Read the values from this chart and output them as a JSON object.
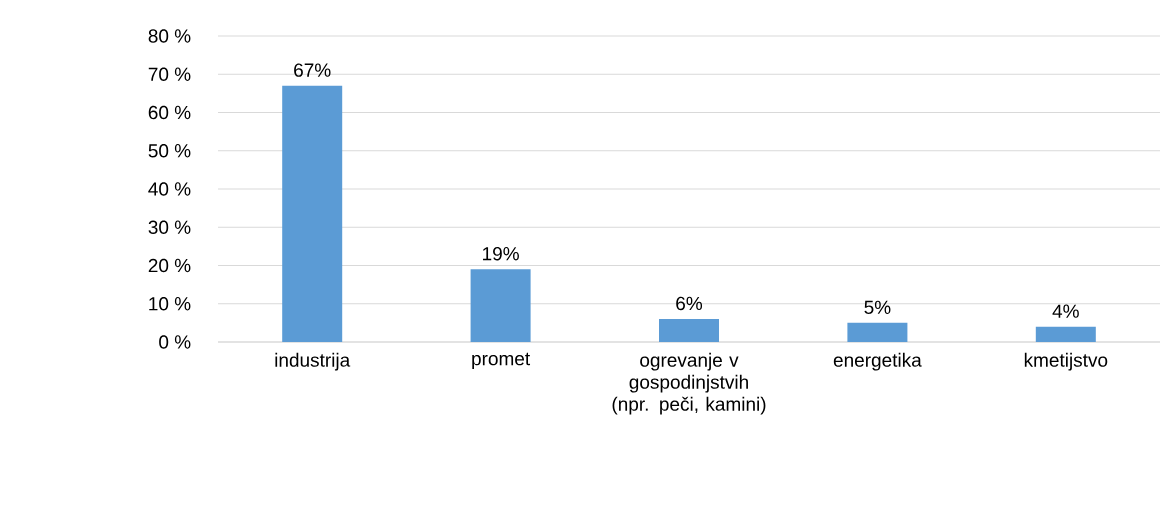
{
  "chart_data": {
    "type": "bar",
    "categories": [
      "industrija",
      "promet",
      "ogrevanje v gospodinjstvih (npr. peči, kamini)",
      "energetika",
      "kmetijstvo"
    ],
    "values": [
      67,
      19,
      6,
      5,
      4
    ],
    "value_labels": [
      "67%",
      "19%",
      "6%",
      "5%",
      "4%"
    ],
    "color": "#5b9bd5",
    "ylim": [
      0,
      80
    ],
    "yticks": [
      {
        "value": 0,
        "label": "0 %"
      },
      {
        "value": 10,
        "label": "10 %"
      },
      {
        "value": 20,
        "label": "20 %"
      },
      {
        "value": 30,
        "label": "30 %"
      },
      {
        "value": 40,
        "label": "40 %"
      },
      {
        "value": 50,
        "label": "50 %"
      },
      {
        "value": 60,
        "label": "60 %"
      },
      {
        "value": 70,
        "label": "70 %"
      },
      {
        "value": 80,
        "label": "80 %"
      }
    ],
    "grid": "y"
  }
}
